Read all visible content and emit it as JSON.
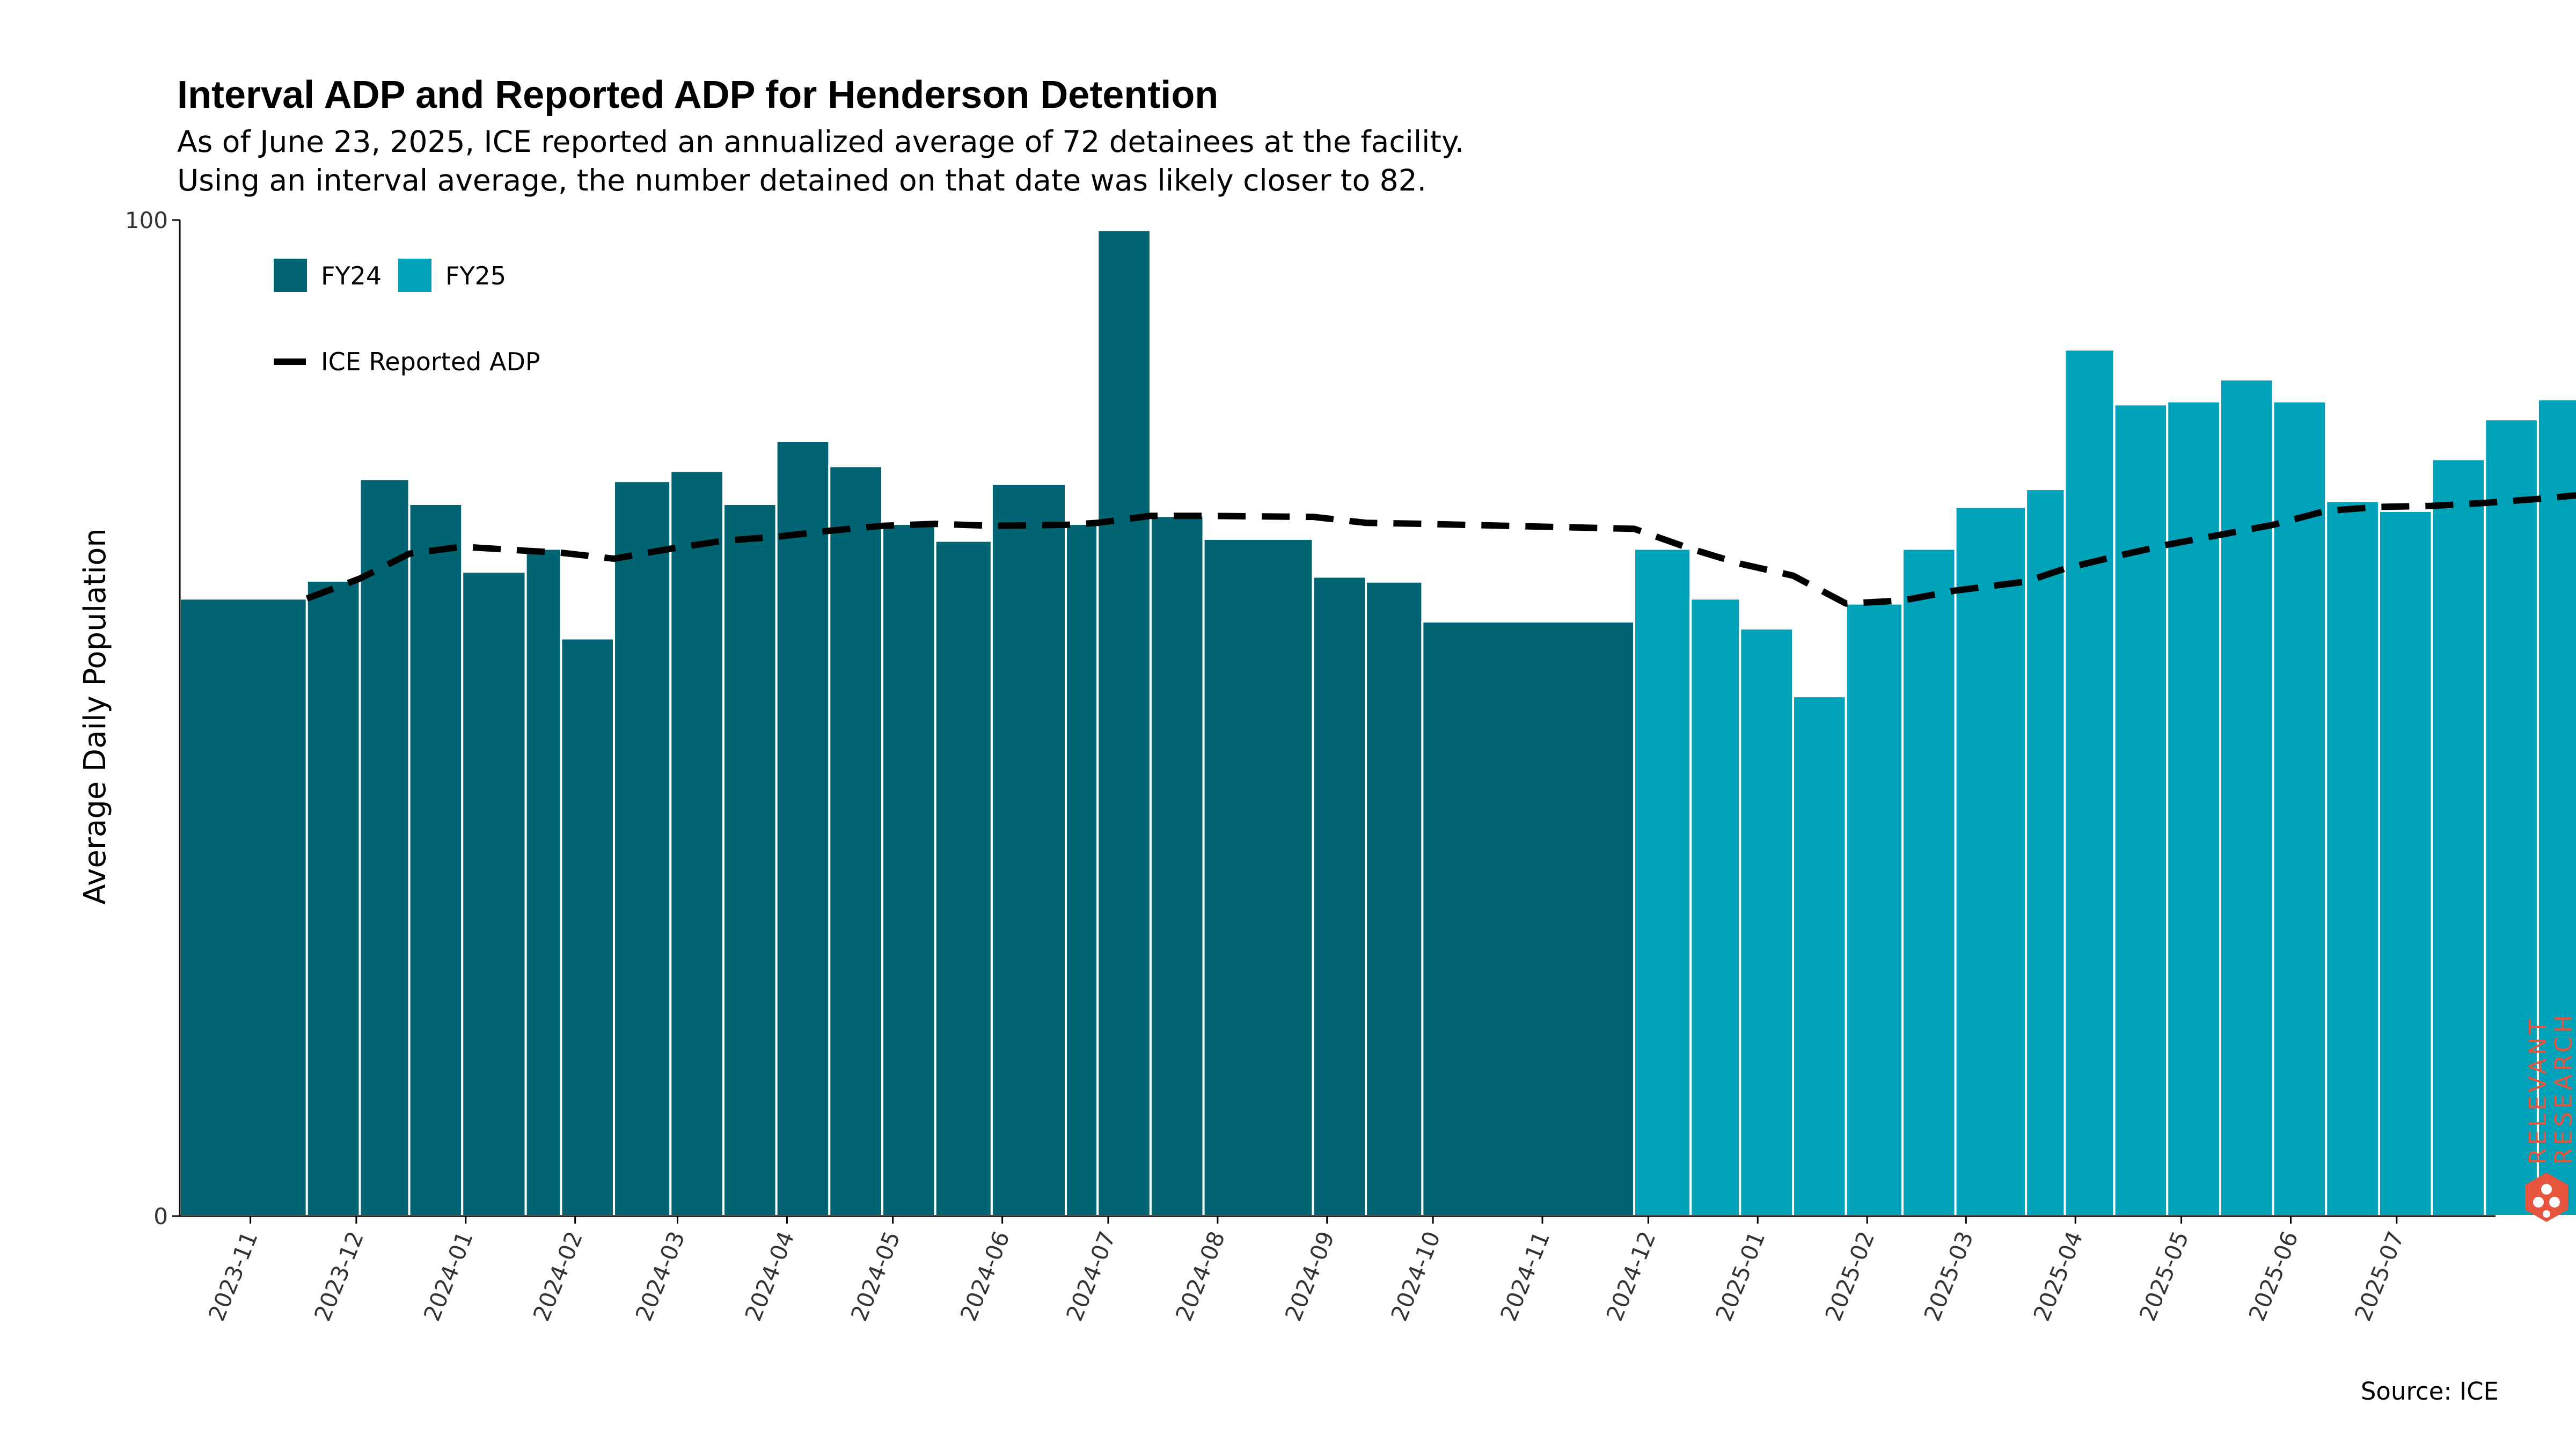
{
  "header": {
    "title": "Interval ADP and Reported ADP for Henderson Detention",
    "subtitle_line1": "As of June 23, 2025, ICE reported an annualized average of 72 detainees at the facility.",
    "subtitle_line2": "Using an interval average, the number detained on that date was likely closer to 82."
  },
  "source": "Source: ICE",
  "logo": {
    "text": "RELEVANT RESEARCH",
    "color": "#e8553e"
  },
  "colors": {
    "fy24": "#006472",
    "fy25": "#00a2b9",
    "line": "#000000",
    "bar_edge": "#ffffff"
  },
  "chart_data": {
    "type": "bar",
    "ylabel": "Average Daily Population",
    "ylim": [
      0,
      100
    ],
    "yticks": [
      0,
      100
    ],
    "xlim": [
      "2023-10-12",
      "2025-07-29"
    ],
    "xticks": [
      "2023-11",
      "2023-12",
      "2024-01",
      "2024-02",
      "2024-03",
      "2024-04",
      "2024-05",
      "2024-06",
      "2024-07",
      "2024-08",
      "2024-09",
      "2024-10",
      "2024-11",
      "2024-12",
      "2025-01",
      "2025-02",
      "2025-03",
      "2025-04",
      "2025-05",
      "2025-06",
      "2025-07"
    ],
    "legend": {
      "placement": "top-left",
      "bar_entries": [
        "FY24",
        "FY25"
      ],
      "line_entry": "ICE Reported ADP"
    },
    "bars": [
      {
        "start": "2023-10-12",
        "end": "2023-11-17",
        "value": 62,
        "series": "FY24"
      },
      {
        "start": "2023-11-17",
        "end": "2023-12-02",
        "value": 63.8,
        "series": "FY24"
      },
      {
        "start": "2023-12-02",
        "end": "2023-12-16",
        "value": 74,
        "series": "FY24"
      },
      {
        "start": "2023-12-16",
        "end": "2023-12-31",
        "value": 71.5,
        "series": "FY24"
      },
      {
        "start": "2023-12-31",
        "end": "2024-01-18",
        "value": 64.7,
        "series": "FY24"
      },
      {
        "start": "2024-01-18",
        "end": "2024-01-28",
        "value": 67,
        "series": "FY24"
      },
      {
        "start": "2024-01-28",
        "end": "2024-02-12",
        "value": 58,
        "series": "FY24"
      },
      {
        "start": "2024-02-12",
        "end": "2024-02-28",
        "value": 73.8,
        "series": "FY24"
      },
      {
        "start": "2024-02-28",
        "end": "2024-03-14",
        "value": 74.8,
        "series": "FY24"
      },
      {
        "start": "2024-03-14",
        "end": "2024-03-29",
        "value": 71.5,
        "series": "FY24"
      },
      {
        "start": "2024-03-29",
        "end": "2024-04-13",
        "value": 77.8,
        "series": "FY24"
      },
      {
        "start": "2024-04-13",
        "end": "2024-04-28",
        "value": 75.3,
        "series": "FY24"
      },
      {
        "start": "2024-04-28",
        "end": "2024-05-13",
        "value": 69.5,
        "series": "FY24"
      },
      {
        "start": "2024-05-13",
        "end": "2024-05-29",
        "value": 67.8,
        "series": "FY24"
      },
      {
        "start": "2024-05-29",
        "end": "2024-06-19",
        "value": 73.5,
        "series": "FY24"
      },
      {
        "start": "2024-06-19",
        "end": "2024-06-28",
        "value": 69.5,
        "series": "FY24"
      },
      {
        "start": "2024-06-28",
        "end": "2024-07-13",
        "value": 99,
        "series": "FY24"
      },
      {
        "start": "2024-07-13",
        "end": "2024-07-28",
        "value": 70.3,
        "series": "FY24"
      },
      {
        "start": "2024-07-28",
        "end": "2024-08-28",
        "value": 68,
        "series": "FY24"
      },
      {
        "start": "2024-08-28",
        "end": "2024-09-12",
        "value": 64.2,
        "series": "FY24"
      },
      {
        "start": "2024-09-12",
        "end": "2024-09-28",
        "value": 63.7,
        "series": "FY24"
      },
      {
        "start": "2024-09-28",
        "end": "2024-11-27",
        "value": 59.7,
        "series": "FY24"
      },
      {
        "start": "2024-11-27",
        "end": "2024-12-13",
        "value": 67,
        "series": "FY25"
      },
      {
        "start": "2024-12-13",
        "end": "2024-12-27",
        "value": 62,
        "series": "FY25"
      },
      {
        "start": "2024-12-27",
        "end": "2025-01-11",
        "value": 59,
        "series": "FY25"
      },
      {
        "start": "2025-01-11",
        "end": "2025-01-26",
        "value": 52.2,
        "series": "FY25"
      },
      {
        "start": "2025-01-26",
        "end": "2025-02-11",
        "value": 61.5,
        "series": "FY25"
      },
      {
        "start": "2025-02-11",
        "end": "2025-02-26",
        "value": 67,
        "series": "FY25"
      },
      {
        "start": "2025-02-26",
        "end": "2025-03-18",
        "value": 71.2,
        "series": "FY25"
      },
      {
        "start": "2025-03-18",
        "end": "2025-03-29",
        "value": 73,
        "series": "FY25"
      },
      {
        "start": "2025-03-29",
        "end": "2025-04-12",
        "value": 87,
        "series": "FY25"
      },
      {
        "start": "2025-04-12",
        "end": "2025-04-27",
        "value": 81.5,
        "series": "FY25"
      },
      {
        "start": "2025-04-27",
        "end": "2025-05-12",
        "value": 81.8,
        "series": "FY25"
      },
      {
        "start": "2025-05-12",
        "end": "2025-05-27",
        "value": 84,
        "series": "FY25"
      },
      {
        "start": "2025-05-27",
        "end": "2025-06-11",
        "value": 81.8,
        "series": "FY25"
      },
      {
        "start": "2025-06-11",
        "end": "2025-06-26",
        "value": 71.8,
        "series": "FY25"
      },
      {
        "start": "2025-06-26",
        "end": "2025-07-11",
        "value": 70.8,
        "series": "FY25"
      },
      {
        "start": "2025-07-11",
        "end": "2025-07-26",
        "value": 76,
        "series": "FY25"
      },
      {
        "start": "2025-07-26",
        "end": "2025-08-10",
        "value": 80,
        "series": "FY25"
      },
      {
        "start": "2025-08-10",
        "end": "2025-08-25",
        "value": 82,
        "series": "FY25"
      }
    ],
    "line": {
      "name": "ICE Reported ADP",
      "points": [
        {
          "x": "2023-11-17",
          "y": 62
        },
        {
          "x": "2023-12-02",
          "y": 64
        },
        {
          "x": "2023-12-16",
          "y": 66.5
        },
        {
          "x": "2023-12-31",
          "y": 67.2
        },
        {
          "x": "2024-01-18",
          "y": 66.8
        },
        {
          "x": "2024-01-28",
          "y": 66.6
        },
        {
          "x": "2024-02-12",
          "y": 66
        },
        {
          "x": "2024-02-28",
          "y": 67
        },
        {
          "x": "2024-03-14",
          "y": 67.8
        },
        {
          "x": "2024-03-29",
          "y": 68.2
        },
        {
          "x": "2024-04-13",
          "y": 68.8
        },
        {
          "x": "2024-04-28",
          "y": 69.3
        },
        {
          "x": "2024-05-13",
          "y": 69.5
        },
        {
          "x": "2024-05-29",
          "y": 69.3
        },
        {
          "x": "2024-06-19",
          "y": 69.4
        },
        {
          "x": "2024-06-28",
          "y": 69.6
        },
        {
          "x": "2024-07-13",
          "y": 70.3
        },
        {
          "x": "2024-07-28",
          "y": 70.3
        },
        {
          "x": "2024-08-28",
          "y": 70.2
        },
        {
          "x": "2024-09-12",
          "y": 69.6
        },
        {
          "x": "2024-09-28",
          "y": 69.5
        },
        {
          "x": "2024-11-27",
          "y": 69
        },
        {
          "x": "2024-12-13",
          "y": 67
        },
        {
          "x": "2024-12-27",
          "y": 65.5
        },
        {
          "x": "2025-01-11",
          "y": 64.3
        },
        {
          "x": "2025-01-26",
          "y": 61.5
        },
        {
          "x": "2025-02-11",
          "y": 61.8
        },
        {
          "x": "2025-02-26",
          "y": 62.8
        },
        {
          "x": "2025-03-18",
          "y": 63.7
        },
        {
          "x": "2025-03-29",
          "y": 65
        },
        {
          "x": "2025-04-12",
          "y": 66.2
        },
        {
          "x": "2025-04-27",
          "y": 67.4
        },
        {
          "x": "2025-05-12",
          "y": 68.4
        },
        {
          "x": "2025-05-27",
          "y": 69.4
        },
        {
          "x": "2025-06-11",
          "y": 70.8
        },
        {
          "x": "2025-06-26",
          "y": 71.2
        },
        {
          "x": "2025-07-11",
          "y": 71.3
        },
        {
          "x": "2025-07-26",
          "y": 71.6
        },
        {
          "x": "2025-08-10",
          "y": 72
        },
        {
          "x": "2025-08-25",
          "y": 72.5
        }
      ]
    }
  }
}
